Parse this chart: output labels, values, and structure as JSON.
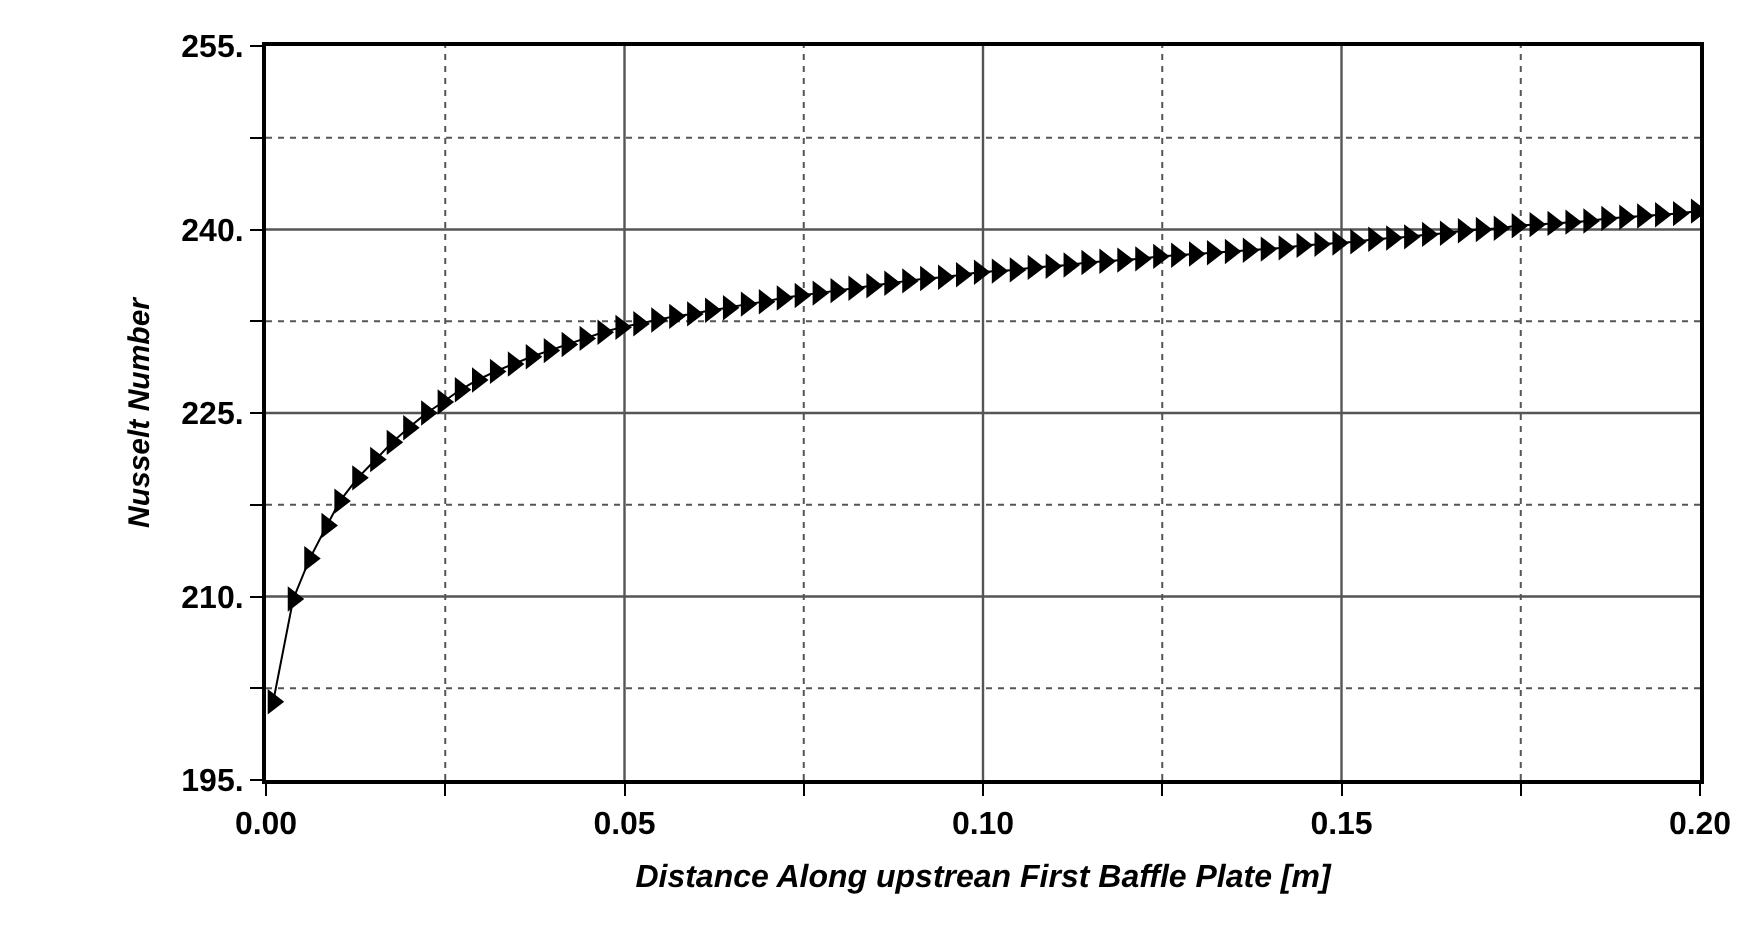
{
  "chart_data": {
    "type": "line",
    "xlabel": "Distance Along upstrean First Baffle Plate [m]",
    "ylabel": "Nusselt Number",
    "x": [
      0.001,
      0.0038,
      0.0061,
      0.0085,
      0.0103,
      0.0128,
      0.0153,
      0.0176,
      0.0199,
      0.0224,
      0.0247,
      0.0271,
      0.0295,
      0.032,
      0.0345,
      0.037,
      0.0395,
      0.042,
      0.0445,
      0.047,
      0.0495,
      0.052,
      0.0545,
      0.057,
      0.0595,
      0.062,
      0.0645,
      0.067,
      0.0695,
      0.072,
      0.0745,
      0.077,
      0.0795,
      0.082,
      0.0845,
      0.087,
      0.0895,
      0.092,
      0.0945,
      0.097,
      0.0995,
      0.102,
      0.1045,
      0.107,
      0.1095,
      0.112,
      0.1145,
      0.117,
      0.1195,
      0.122,
      0.1245,
      0.127,
      0.1295,
      0.132,
      0.1345,
      0.137,
      0.1395,
      0.142,
      0.1445,
      0.147,
      0.1495,
      0.152,
      0.1545,
      0.157,
      0.1595,
      0.162,
      0.1645,
      0.167,
      0.1695,
      0.172,
      0.1745,
      0.177,
      0.1795,
      0.182,
      0.1845,
      0.187,
      0.1895,
      0.192,
      0.1945,
      0.197,
      0.1995
    ],
    "series": [
      {
        "color": "#000000",
        "values": [
          201.4,
          209.8,
          213.1,
          215.8,
          217.8,
          219.7,
          221.2,
          222.6,
          223.8,
          225.0,
          225.9,
          226.9,
          227.7,
          228.4,
          229.0,
          229.6,
          230.1,
          230.6,
          231.1,
          231.6,
          232.0,
          232.3,
          232.6,
          232.9,
          233.1,
          233.4,
          233.6,
          233.9,
          234.1,
          234.4,
          234.6,
          234.8,
          235.0,
          235.2,
          235.4,
          235.6,
          235.8,
          236.0,
          236.1,
          236.3,
          236.5,
          236.6,
          236.7,
          236.9,
          237.0,
          237.1,
          237.3,
          237.4,
          237.5,
          237.6,
          237.8,
          237.9,
          238.0,
          238.1,
          238.2,
          238.3,
          238.4,
          238.5,
          238.7,
          238.8,
          238.9,
          239.0,
          239.2,
          239.3,
          239.4,
          239.6,
          239.7,
          239.9,
          240.0,
          240.1,
          240.3,
          240.4,
          240.5,
          240.6,
          240.7,
          240.9,
          241.0,
          241.1,
          241.2,
          241.3,
          241.5
        ]
      }
    ],
    "xlim": [
      0,
      0.2
    ],
    "ylim": [
      195,
      255
    ],
    "xticks": [
      {
        "value": 0,
        "label": "0.00"
      },
      {
        "value": 0.025,
        "label": null
      },
      {
        "value": 0.05,
        "label": "0.05"
      },
      {
        "value": 0.075,
        "label": null
      },
      {
        "value": 0.1,
        "label": "0.10"
      },
      {
        "value": 0.125,
        "label": null
      },
      {
        "value": 0.15,
        "label": "0.15"
      },
      {
        "value": 0.175,
        "label": null
      },
      {
        "value": 0.2,
        "label": "0.20"
      }
    ],
    "yticks": [
      {
        "value": 195,
        "label": "195."
      },
      {
        "value": 202.5,
        "label": null
      },
      {
        "value": 210,
        "label": "210."
      },
      {
        "value": 217.5,
        "label": null
      },
      {
        "value": 225,
        "label": "225."
      },
      {
        "value": 232.5,
        "label": null
      },
      {
        "value": 240,
        "label": "240."
      },
      {
        "value": 247.5,
        "label": null
      },
      {
        "value": 255,
        "label": "255."
      }
    ],
    "grid": true,
    "marker": "triangle",
    "line_style": "solid"
  }
}
